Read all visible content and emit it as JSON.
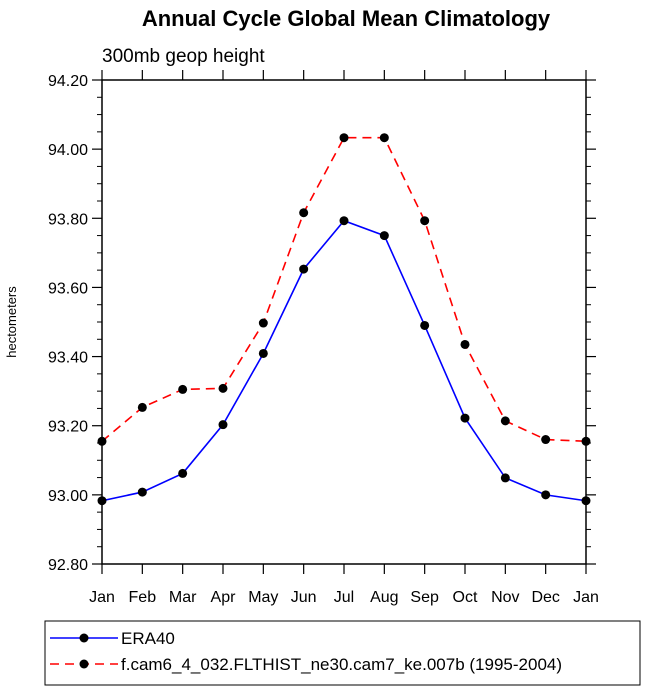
{
  "chart_data": {
    "type": "line",
    "title": "Annual Cycle Global Mean Climatology",
    "subtitle": "300mb geop height",
    "ylabel": "hectometers",
    "xlabel": "",
    "categories": [
      "Jan",
      "Feb",
      "Mar",
      "Apr",
      "May",
      "Jun",
      "Jul",
      "Aug",
      "Sep",
      "Oct",
      "Nov",
      "Dec",
      "Jan"
    ],
    "ylim": [
      92.8,
      94.2
    ],
    "yticks": [
      "92.80",
      "93.00",
      "93.20",
      "93.40",
      "93.60",
      "93.80",
      "94.00",
      "94.20"
    ],
    "grid": false,
    "legend_position": "bottom",
    "series": [
      {
        "name": "ERA40",
        "color": "#0000ff",
        "dash": "solid",
        "values": [
          92.983,
          93.008,
          93.062,
          93.203,
          93.409,
          93.653,
          93.793,
          93.75,
          93.49,
          93.222,
          93.049,
          93.0,
          92.983
        ]
      },
      {
        "name": "f.cam6_4_032.FLTHIST_ne30.cam7_ke.007b (1995-2004)",
        "color": "#ff0000",
        "dash": "dashed",
        "values": [
          93.155,
          93.253,
          93.305,
          93.308,
          93.497,
          93.816,
          94.033,
          94.033,
          93.793,
          93.435,
          93.214,
          93.16,
          93.155
        ]
      }
    ]
  }
}
